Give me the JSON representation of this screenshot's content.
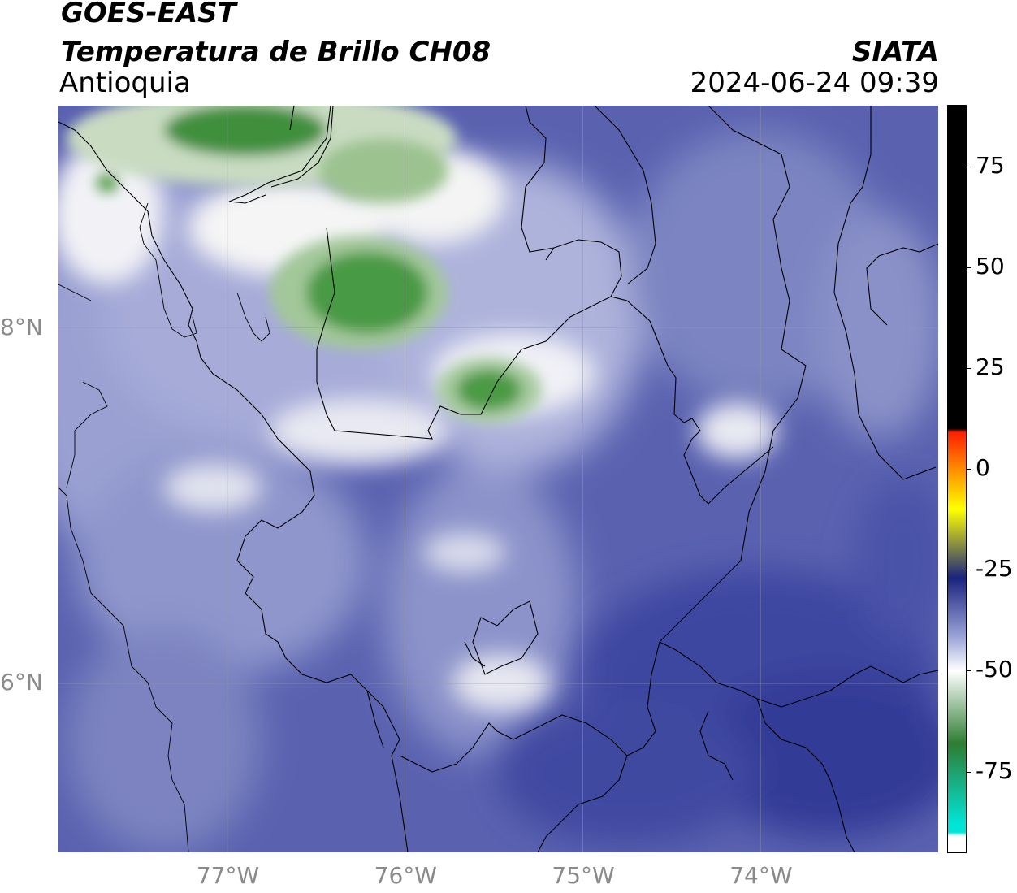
{
  "header": {
    "satellite": "GOES-EAST",
    "product": "Temperatura de Brillo CH08",
    "region": "Antioquia",
    "agency": "SIATA",
    "timestamp": "2024-06-24 09:39"
  },
  "map": {
    "lat_labels": [
      {
        "text": "8°N",
        "lat": 8
      },
      {
        "text": "6°N",
        "lat": 6
      }
    ],
    "lon_labels": [
      {
        "text": "77°W",
        "lon": -77
      },
      {
        "text": "76°W",
        "lon": -76
      },
      {
        "text": "75°W",
        "lon": -75
      },
      {
        "text": "74°W",
        "lon": -74
      }
    ],
    "extent": {
      "lon_min": -77.95,
      "lon_max": -73.0,
      "lat_min": 5.05,
      "lat_max": 9.25
    }
  },
  "colorbar": {
    "ticks": [
      {
        "text": "75",
        "value": 75
      },
      {
        "text": "50",
        "value": 50
      },
      {
        "text": "25",
        "value": 25
      },
      {
        "text": "0",
        "value": 0
      },
      {
        "text": "-25",
        "value": -25
      },
      {
        "text": "-50",
        "value": -50
      },
      {
        "text": "-75",
        "value": -75
      }
    ],
    "range": [
      -95,
      90
    ],
    "colors": {
      "black": "#000000",
      "red": "#ff2000",
      "orange": "#ff8c00",
      "yellow": "#ffff00",
      "navy": "#1a237e",
      "lavender": "#9fa8da",
      "white": "#ffffff",
      "green": "#2e7d32",
      "cyan": "#00e5d8"
    }
  }
}
